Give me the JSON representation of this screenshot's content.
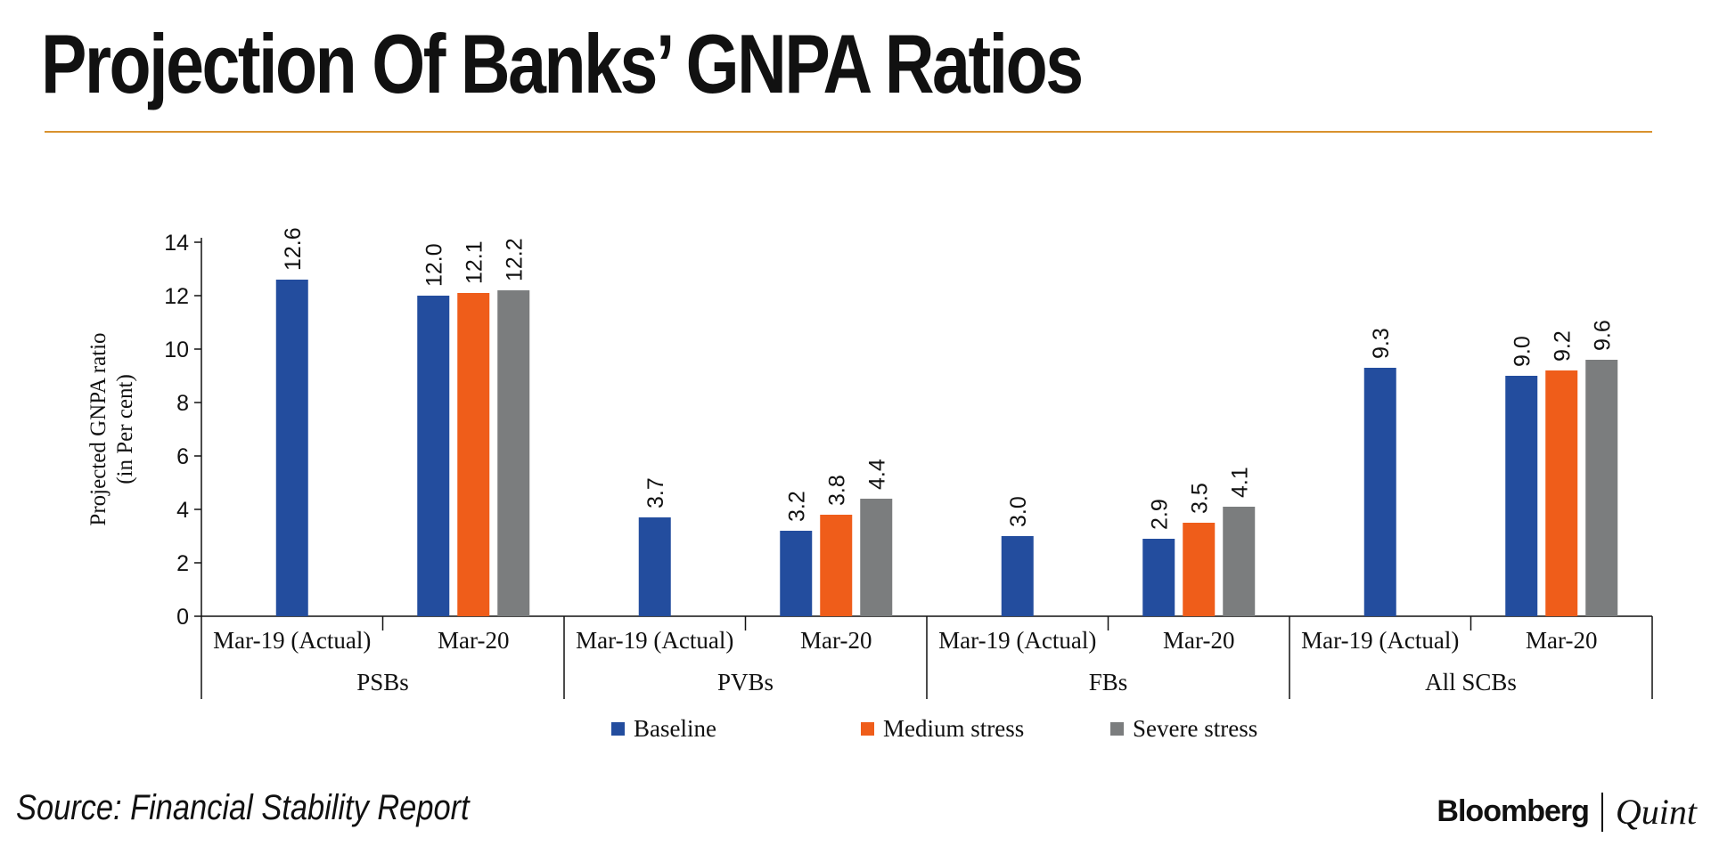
{
  "title": "Projection Of Banks’ GNPA Ratios",
  "source": "Source: Financial Stability Report",
  "brand": {
    "name": "Bloomberg",
    "suffix": "Quint"
  },
  "colors": {
    "title_rule": "#d9922e",
    "baseline": "#234d9e",
    "medium": "#ef5d1a",
    "severe": "#7b7d7e"
  },
  "chart_data": {
    "type": "bar",
    "title": "Projection Of Banks’ GNPA Ratios",
    "ylabel": [
      "Projected GNPA ratio",
      "(in Per cent)"
    ],
    "ylim": [
      0,
      14
    ],
    "yticks": [
      0,
      2,
      4,
      6,
      8,
      10,
      12,
      14
    ],
    "grid": false,
    "legend_position": "bottom",
    "groups": [
      {
        "name": "PSBs",
        "periods": [
          {
            "label": "Mar-19 (Actual)",
            "values": {
              "Baseline": 12.6
            }
          },
          {
            "label": "Mar-20",
            "values": {
              "Baseline": 12.0,
              "Medium stress": 12.1,
              "Severe stress": 12.2
            }
          }
        ]
      },
      {
        "name": "PVBs",
        "periods": [
          {
            "label": "Mar-19 (Actual)",
            "values": {
              "Baseline": 3.7
            }
          },
          {
            "label": "Mar-20",
            "values": {
              "Baseline": 3.2,
              "Medium stress": 3.8,
              "Severe stress": 4.4
            }
          }
        ]
      },
      {
        "name": "FBs",
        "periods": [
          {
            "label": "Mar-19 (Actual)",
            "values": {
              "Baseline": 3.0
            }
          },
          {
            "label": "Mar-20",
            "values": {
              "Baseline": 2.9,
              "Medium stress": 3.5,
              "Severe stress": 4.1
            }
          }
        ]
      },
      {
        "name": "All SCBs",
        "periods": [
          {
            "label": "Mar-19 (Actual)",
            "values": {
              "Baseline": 9.3
            }
          },
          {
            "label": "Mar-20",
            "values": {
              "Baseline": 9.0,
              "Medium stress": 9.2,
              "Severe stress": 9.6
            }
          }
        ]
      }
    ],
    "series": [
      {
        "name": "Baseline",
        "color": "#234d9e"
      },
      {
        "name": "Medium stress",
        "color": "#ef5d1a"
      },
      {
        "name": "Severe stress",
        "color": "#7b7d7e"
      }
    ]
  }
}
